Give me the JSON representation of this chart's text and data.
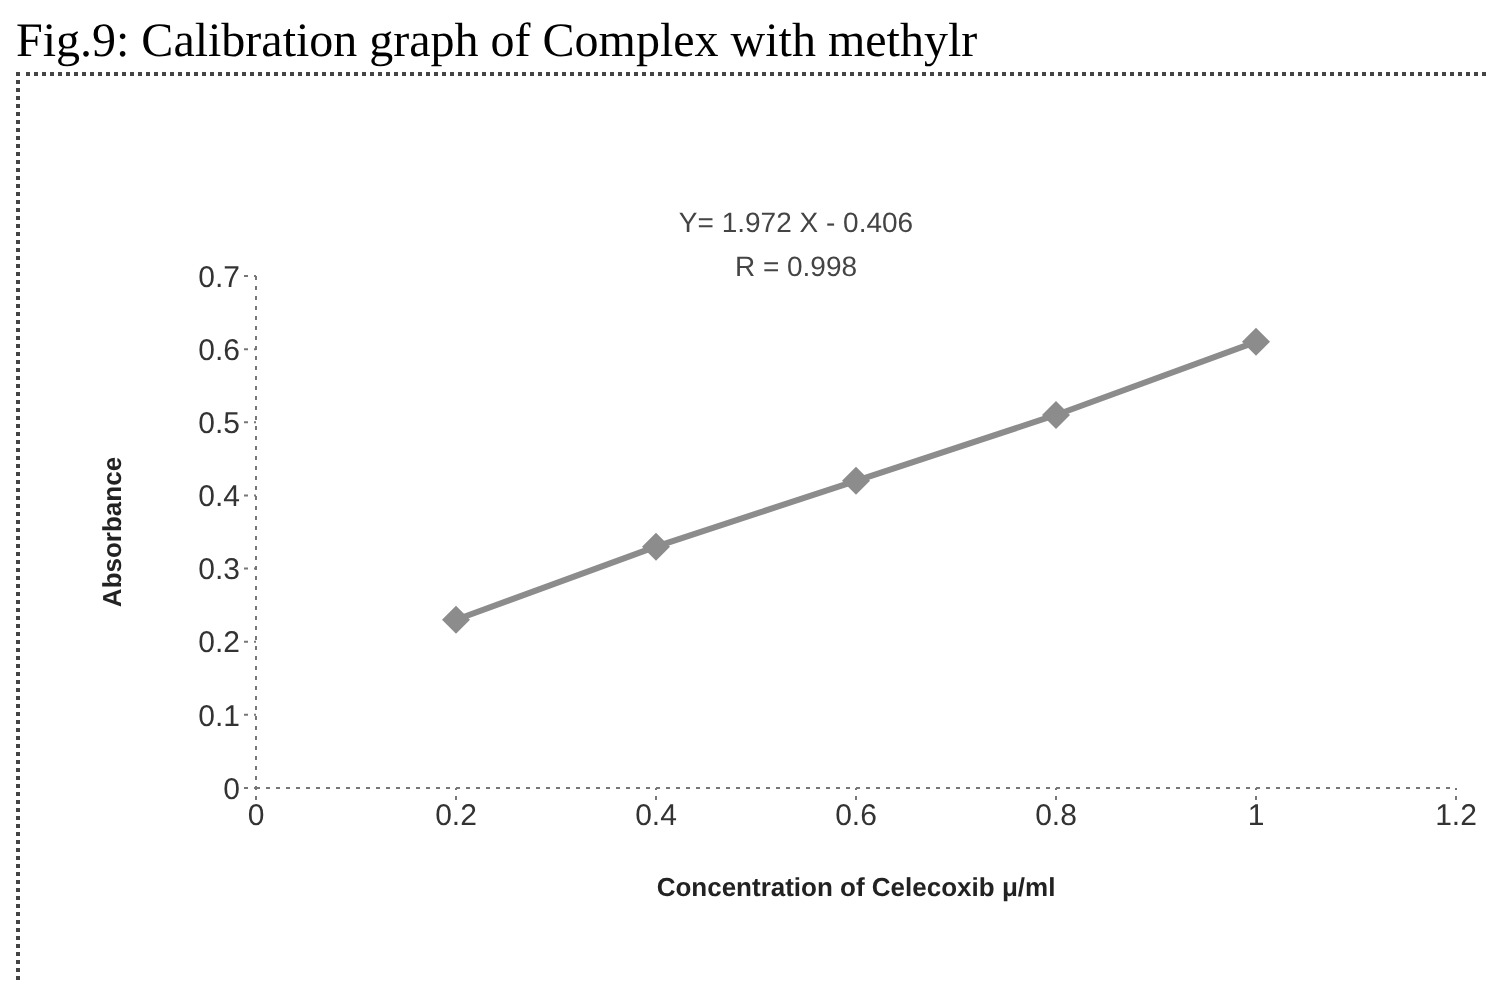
{
  "chart_data": {
    "type": "line",
    "title": "Fig.9: Calibration graph of Complex with methylr",
    "xlabel": "Concentration of Celecoxib μ/ml",
    "ylabel": "Absorbance",
    "annotations": [
      "Y= 1.972 X - 0.406",
      "R = 0.998"
    ],
    "x": [
      0.2,
      0.4,
      0.6,
      0.8,
      1
    ],
    "series": [
      {
        "color": "#8c8c8c",
        "values": [
          0.23,
          0.33,
          0.42,
          0.51,
          0.61
        ]
      }
    ],
    "xlim": [
      0,
      1.2
    ],
    "xticks": [
      0,
      0.2,
      0.4,
      0.6,
      0.8,
      1,
      1.2
    ],
    "ylim": [
      0,
      0.7
    ],
    "yticks": [
      0,
      0.1,
      0.2,
      0.3,
      0.4,
      0.5,
      0.6,
      0.7
    ],
    "grid": false,
    "legend": false,
    "marker": "diamond",
    "line_style": "solid"
  }
}
